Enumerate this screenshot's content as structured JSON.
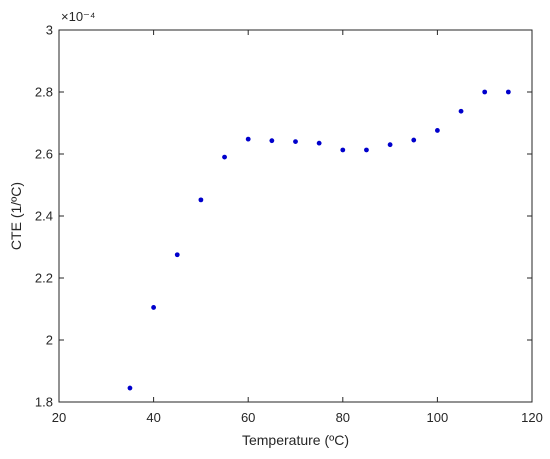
{
  "chart_data": {
    "type": "scatter",
    "xlabel": "Temperature (ºC)",
    "ylabel": "CTE (1/ºC)",
    "xlim": [
      20,
      120
    ],
    "ylim": [
      1.8,
      3.0
    ],
    "y_exponent_label": "×10⁻⁴",
    "x_ticks": [
      "20",
      "40",
      "60",
      "80",
      "100",
      "120"
    ],
    "y_ticks": [
      "1.8",
      "2",
      "2.2",
      "2.4",
      "2.6",
      "2.8",
      "3"
    ],
    "grid": false,
    "marker_color": "#0000cc",
    "series": [
      {
        "x": [
          35,
          40,
          45,
          50,
          55,
          60,
          65,
          70,
          75,
          80,
          85,
          90,
          95,
          100,
          105,
          110,
          115
        ],
        "values": [
          1.845,
          2.105,
          2.275,
          2.452,
          2.59,
          2.648,
          2.643,
          2.64,
          2.635,
          2.613,
          2.613,
          2.63,
          2.645,
          2.676,
          2.738,
          2.8,
          2.8
        ]
      }
    ]
  }
}
